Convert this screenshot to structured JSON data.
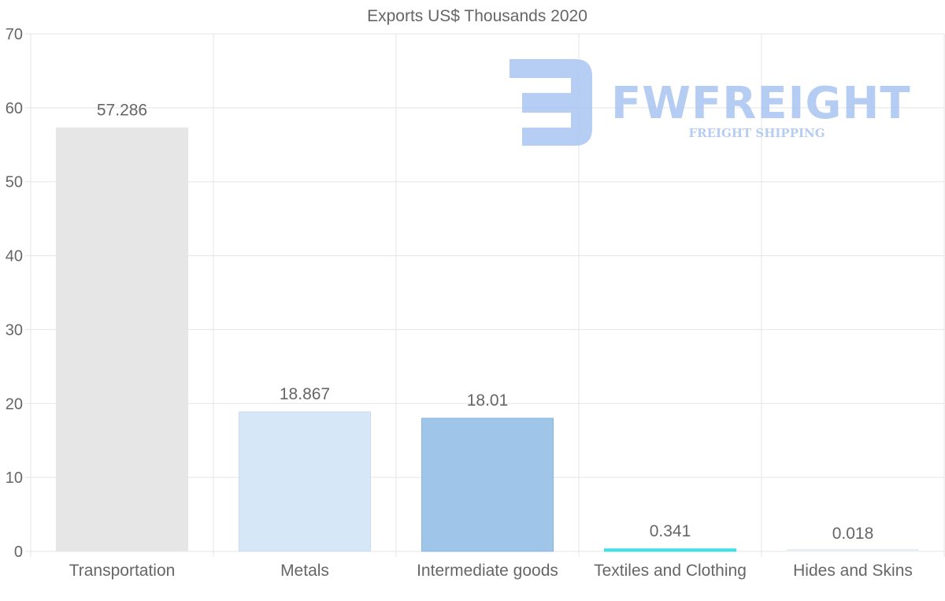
{
  "chart_data": {
    "type": "bar",
    "title": "Exports US$ Thousands 2020",
    "categories": [
      "Transportation",
      "Metals",
      "Intermediate goods",
      "Textiles and Clothing",
      "Hides and Skins"
    ],
    "values": [
      57.286,
      18.867,
      18.01,
      0.341,
      0.018
    ],
    "value_labels": [
      "57.286",
      "18.867",
      "18.01",
      "0.341",
      "0.018"
    ],
    "bar_colors": [
      "#e6e6e6",
      "#d6e7f8",
      "#9fc5e8",
      "#3fdfe6",
      "#e9eef5"
    ],
    "xlabel": "",
    "ylabel": "",
    "ylim": [
      0,
      70
    ],
    "y_ticks": [
      0,
      10,
      20,
      30,
      40,
      50,
      60,
      70
    ],
    "grid": true,
    "legend": "none"
  },
  "watermark": {
    "brand": "FWFREIGHT",
    "tagline": "FREIGHT SHIPPING",
    "color": "#a9c4f2"
  },
  "colors": {
    "grid": "#e5e5e5",
    "text": "#666666"
  }
}
